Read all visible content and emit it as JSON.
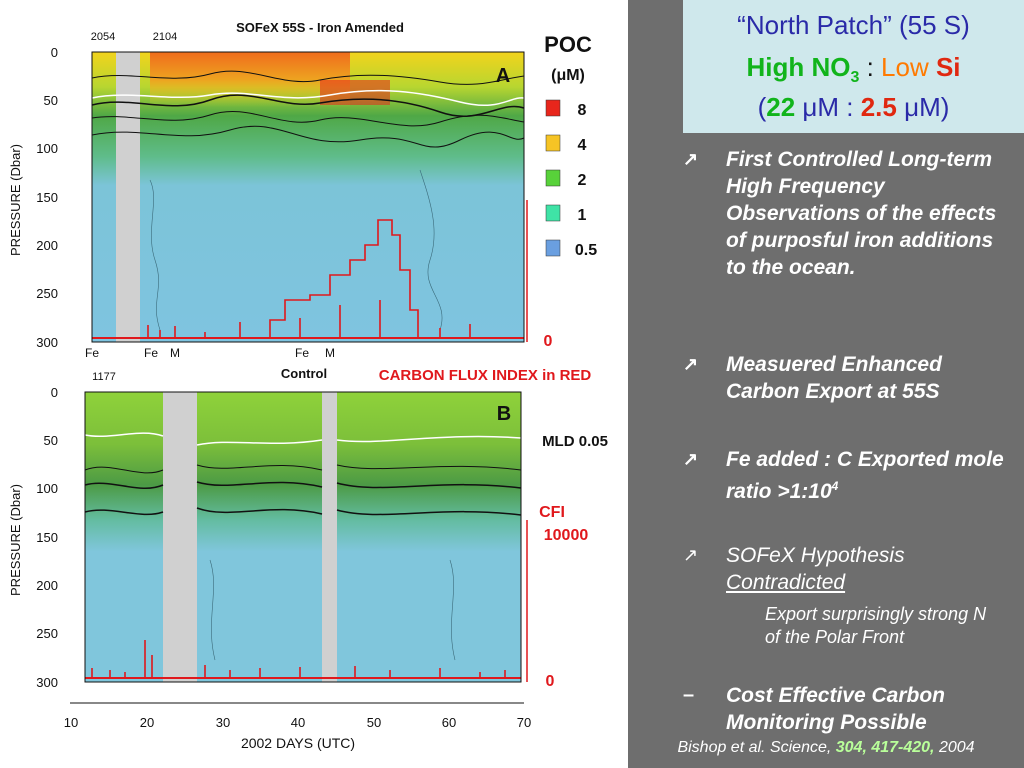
{
  "figure": {
    "title_a": "SOFeX 55S  - Iron Amended",
    "title_b": "Control",
    "panel_a_label": "A",
    "panel_b_label": "B",
    "ylabel": "PRESSURE (Dbar)",
    "xlabel": "2002 DAYS (UTC)",
    "float_id_a1": "2054",
    "float_id_a2": "2104",
    "float_id_b": "1177",
    "y_ticks": [
      "0",
      "50",
      "100",
      "150",
      "200",
      "250",
      "300"
    ],
    "x_ticks": [
      "10",
      "20",
      "30",
      "40",
      "50",
      "60",
      "70"
    ],
    "event_markers_a": [
      "Fe",
      "Fe",
      "M",
      "Fe",
      "M"
    ],
    "carbon_flux_label": "CARBON FLUX INDEX in RED",
    "mld_label": "MLD 0.05",
    "cfi_label": "CFI",
    "cfi_value": "10000",
    "cfi_zero": "0",
    "legend_title": "POC",
    "legend_unit": "(μM)",
    "legend": [
      {
        "label": "8",
        "color": "#e8261c"
      },
      {
        "label": "4",
        "color": "#f6c425"
      },
      {
        "label": "2",
        "color": "#58d23a"
      },
      {
        "label": "1",
        "color": "#3fe3a6"
      },
      {
        "label": "0.5",
        "color": "#6a9fe0"
      }
    ]
  },
  "header": {
    "line1": "“North Patch” (55 S)",
    "line2_part1": "High NO",
    "line2_sub": "3",
    "line2_sep": " : ",
    "line2_low": "Low ",
    "line2_si": "Si",
    "line3_open": "(",
    "line3_val1": "22",
    "line3_unit1": " μM : ",
    "line3_val2": "2.5",
    "line3_unit2": " μM)"
  },
  "bullets": [
    {
      "mark": "↗",
      "text": "First Controlled Long-term High Frequency Observations of the effects of purposful iron additions to the ocean."
    },
    {
      "mark": "↗",
      "text": "Measuered Enhanced Carbon Export at 55S"
    },
    {
      "mark": "↗",
      "text_main": "Fe added : C Exported mole ratio >1:10",
      "text_sup": "4"
    },
    {
      "mark": "↗",
      "text_main": "SOFeX Hypothesis ",
      "text_underline": "Contradicted"
    }
  ],
  "subpoint": "Export surprisingly strong N of the Polar Front",
  "dash_point": {
    "mark": "–",
    "text": "Cost Effective Carbon Monitoring Possible"
  },
  "citation": {
    "prefix": "Bishop et al. Science, ",
    "volume": "304, 417-420,",
    "year": " 2004"
  }
}
